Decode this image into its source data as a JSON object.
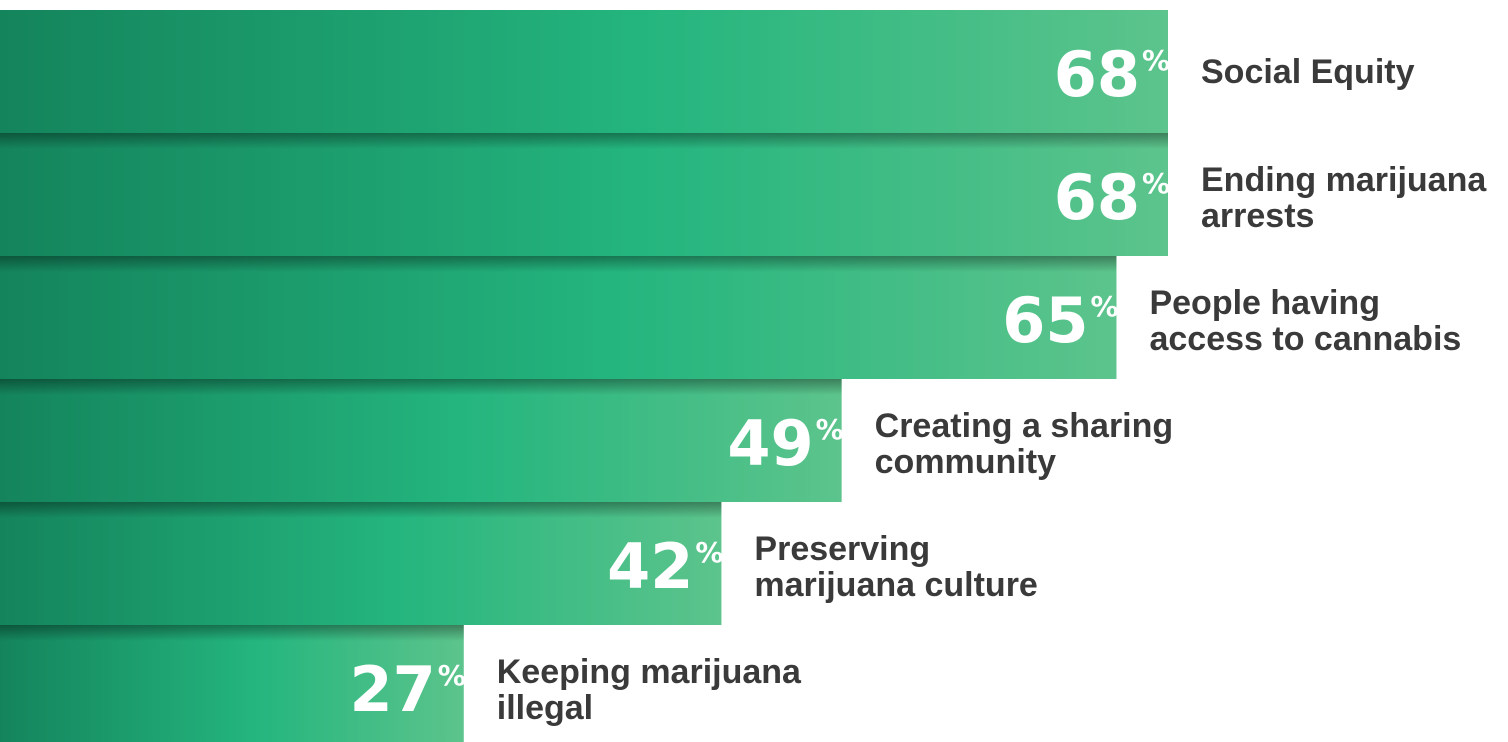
{
  "chart_data": {
    "type": "bar",
    "orientation": "horizontal",
    "categories": [
      [
        "Social Equity"
      ],
      [
        "Ending marijuana",
        "arrests"
      ],
      [
        "People having",
        "access to cannabis"
      ],
      [
        "Creating a sharing",
        "community"
      ],
      [
        "Preserving",
        "marijuana culture"
      ],
      [
        "Keeping marijuana",
        "illegal"
      ]
    ],
    "values": [
      68,
      68,
      65,
      49,
      42,
      27
    ],
    "value_suffix": "%",
    "xlim": [
      0,
      100
    ],
    "grid": false,
    "legend": "none",
    "colors": {
      "bar_dark": "#14845c",
      "bar_mid": "#24b57e",
      "bar_light": "#5cc48c",
      "label_text": "#3a3a3a",
      "value_text": "#ffffff"
    }
  }
}
